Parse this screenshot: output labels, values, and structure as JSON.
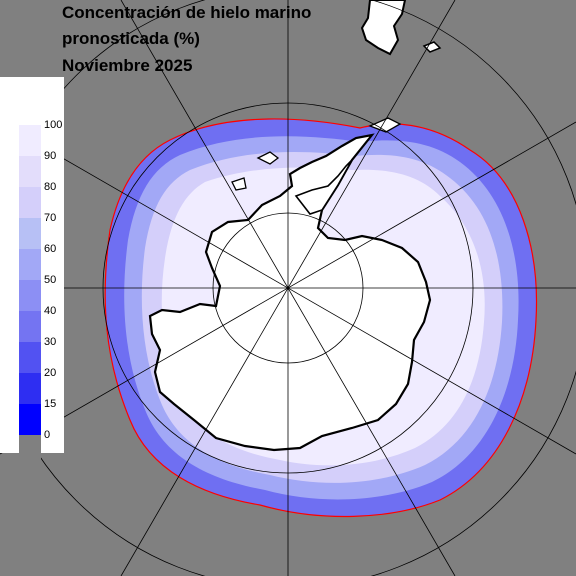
{
  "title": {
    "line1": "Concentración de hielo marino",
    "line2": "pronosticada (%)",
    "line3": "Noviembre 2025"
  },
  "legend": {
    "ticks": [
      "100",
      "90",
      "80",
      "70",
      "60",
      "50",
      "40",
      "30",
      "20",
      "15",
      "0"
    ],
    "bins": [
      {
        "color": "#ffffff"
      },
      {
        "color": "#f0ecff"
      },
      {
        "color": "#e3ddfb"
      },
      {
        "color": "#d4cffa"
      },
      {
        "color": "#b7c0f5"
      },
      {
        "color": "#a2a8f6"
      },
      {
        "color": "#8c8ff4"
      },
      {
        "color": "#7474f2"
      },
      {
        "color": "#5252f2"
      },
      {
        "color": "#2e2ef2"
      },
      {
        "color": "#0000ff"
      },
      {
        "color": "#808080"
      }
    ]
  },
  "map": {
    "projection": "south-polar-stereographic",
    "ocean_color": "#808080",
    "land_color": "#ffffff",
    "coast_color": "#000000",
    "ice_edge_color": "#ff0000",
    "graticule_color": "#000000"
  }
}
